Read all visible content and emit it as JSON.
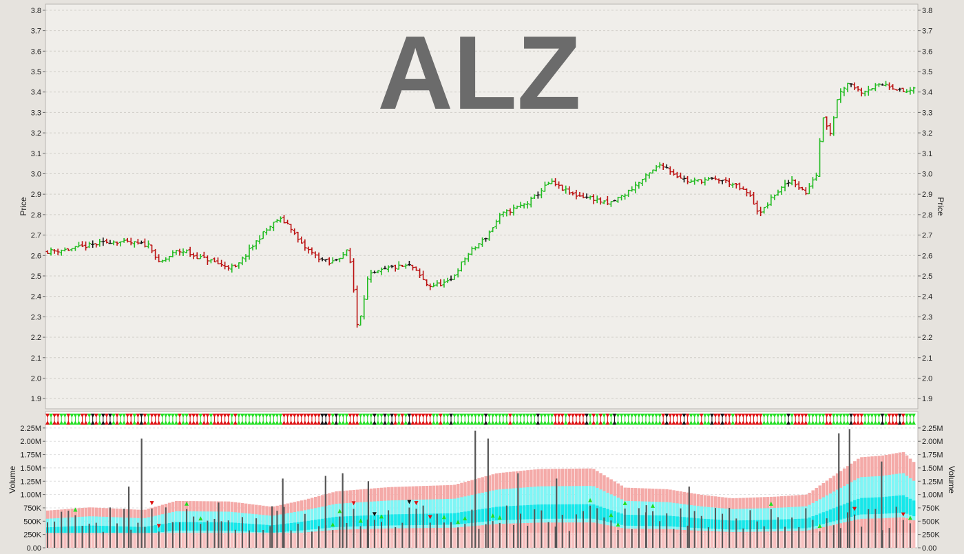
{
  "chart_data": [
    {
      "type": "ohlc",
      "title": "ALZ",
      "ylabel": "Price",
      "ylim": [
        1.85,
        3.83
      ],
      "yticks": [
        "1.9",
        "2.0",
        "2.1",
        "2.2",
        "2.3",
        "2.4",
        "2.5",
        "2.6",
        "2.7",
        "2.8",
        "2.9",
        "3.0",
        "3.1",
        "3.2",
        "3.3",
        "3.4",
        "3.5",
        "3.6",
        "3.7",
        "3.8"
      ],
      "grid": true,
      "bars_count": 250,
      "colors": {
        "up": "#22bb22",
        "down": "#bb1111",
        "flat": "#111111",
        "grid": "#d0cdc8",
        "title": "#6b6b6b"
      },
      "close_anchors": [
        [
          0,
          2.62
        ],
        [
          10,
          2.63
        ],
        [
          20,
          2.65
        ],
        [
          30,
          2.67
        ],
        [
          40,
          2.66
        ],
        [
          48,
          2.65
        ],
        [
          52,
          2.56
        ],
        [
          55,
          2.58
        ],
        [
          60,
          2.62
        ],
        [
          65,
          2.62
        ],
        [
          68,
          2.6
        ],
        [
          75,
          2.58
        ],
        [
          82,
          2.55
        ],
        [
          88,
          2.54
        ],
        [
          94,
          2.62
        ],
        [
          100,
          2.7
        ],
        [
          108,
          2.78
        ],
        [
          113,
          2.75
        ],
        [
          118,
          2.66
        ],
        [
          125,
          2.6
        ],
        [
          132,
          2.56
        ],
        [
          140,
          2.62
        ],
        [
          142,
          2.55
        ],
        [
          145,
          2.24
        ],
        [
          150,
          2.5
        ],
        [
          160,
          2.54
        ],
        [
          170,
          2.55
        ],
        [
          178,
          2.45
        ],
        [
          188,
          2.47
        ],
        [
          196,
          2.6
        ],
        [
          205,
          2.69
        ],
        [
          212,
          2.8
        ],
        [
          225,
          2.86
        ],
        [
          235,
          2.96
        ],
        [
          245,
          2.9
        ],
        [
          255,
          2.88
        ],
        [
          262,
          2.85
        ],
        [
          270,
          2.9
        ],
        [
          278,
          2.97
        ],
        [
          287,
          3.05
        ],
        [
          293,
          3.0
        ],
        [
          300,
          2.96
        ],
        [
          307,
          2.97
        ],
        [
          315,
          2.97
        ],
        [
          320,
          2.95
        ],
        [
          328,
          2.9
        ],
        [
          333,
          2.8
        ],
        [
          340,
          2.9
        ],
        [
          348,
          2.97
        ],
        [
          355,
          2.9
        ],
        [
          358,
          2.98
        ],
        [
          360,
          3.0
        ],
        [
          362,
          3.3
        ],
        [
          366,
          3.2
        ],
        [
          370,
          3.4
        ],
        [
          375,
          3.45
        ],
        [
          380,
          3.4
        ],
        [
          385,
          3.42
        ],
        [
          392,
          3.44
        ],
        [
          400,
          3.4
        ],
        [
          405,
          3.41
        ]
      ]
    },
    {
      "type": "bar",
      "title": "",
      "ylabel": "Volume",
      "ylim": [
        0,
        2300000
      ],
      "yticks": [
        "0.00",
        "250K",
        "500K",
        "750K",
        "1.00M",
        "1.25M",
        "1.50M",
        "1.75M",
        "2.00M",
        "2.25M"
      ],
      "grid": true,
      "colors": {
        "bar": "#555555",
        "band_outer": "#f4aaa8",
        "band_mid": "#7ff6f6",
        "band_inner": "#16e8ea",
        "baseline": "#f6c0bf",
        "up_marker": "#22dd22",
        "down_marker": "#dd1111",
        "flat_marker": "#111111"
      },
      "band_anchors": [
        [
          0,
          700000
        ],
        [
          20,
          760000
        ],
        [
          45,
          710000
        ],
        [
          60,
          880000
        ],
        [
          85,
          870000
        ],
        [
          105,
          770000
        ],
        [
          120,
          900000
        ],
        [
          135,
          1060000
        ],
        [
          160,
          1140000
        ],
        [
          190,
          1180000
        ],
        [
          210,
          1400000
        ],
        [
          230,
          1480000
        ],
        [
          255,
          1490000
        ],
        [
          270,
          1130000
        ],
        [
          290,
          1100000
        ],
        [
          305,
          1000000
        ],
        [
          320,
          930000
        ],
        [
          340,
          960000
        ],
        [
          355,
          1000000
        ],
        [
          365,
          1280000
        ],
        [
          380,
          1700000
        ],
        [
          390,
          1730000
        ],
        [
          400,
          1800000
        ],
        [
          408,
          1500000
        ]
      ],
      "spikes": [
        [
          38,
          1150000
        ],
        [
          44,
          2050000
        ],
        [
          80,
          850000
        ],
        [
          105,
          780000
        ],
        [
          110,
          1300000
        ],
        [
          130,
          1350000
        ],
        [
          138,
          1400000
        ],
        [
          150,
          1250000
        ],
        [
          200,
          2200000
        ],
        [
          206,
          2050000
        ],
        [
          220,
          1400000
        ],
        [
          238,
          1300000
        ],
        [
          280,
          800000
        ],
        [
          300,
          1150000
        ],
        [
          370,
          2150000
        ],
        [
          375,
          2230000
        ],
        [
          390,
          1620000
        ]
      ]
    }
  ]
}
